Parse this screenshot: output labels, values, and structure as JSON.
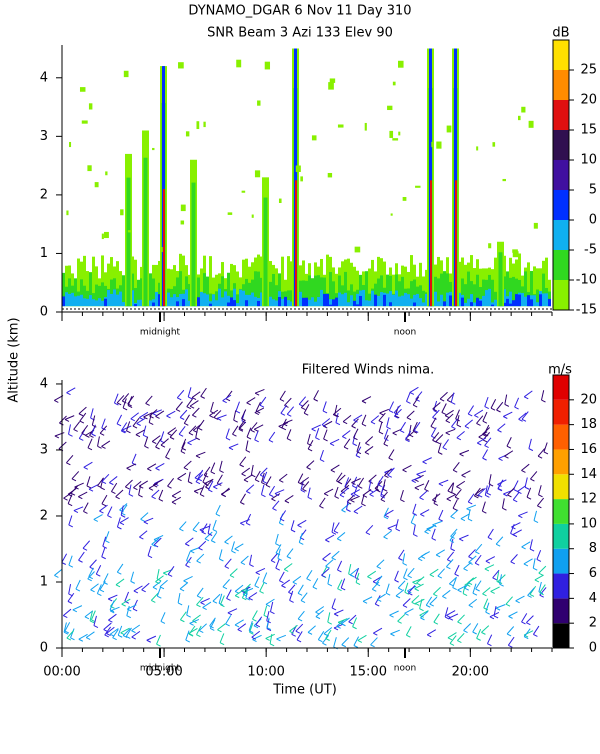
{
  "chart_data": [
    {
      "type": "contour",
      "title": "DYNAMO_DGAR    6 Nov 11 Day 310",
      "subtitle": "SNR Beam 3 Azi 133 Elev 90",
      "xlim": [
        0,
        24
      ],
      "xticks": [
        0,
        5,
        10,
        15,
        20
      ],
      "ylim": [
        0,
        4.56
      ],
      "yticks": [
        0,
        1,
        2,
        3,
        4
      ],
      "annotations": [
        {
          "x": 4.8,
          "text": "midnight"
        },
        {
          "x": 16.8,
          "text": "noon"
        }
      ],
      "colorbar": {
        "label": "dB",
        "bounds": [
          -15,
          -10,
          -5,
          0,
          5,
          10,
          15,
          20,
          25,
          30
        ],
        "colors": [
          "#88f000",
          "#30d820",
          "#10b0f0",
          "#0030ff",
          "#4010a0",
          "#301050",
          "#e01010",
          "#ff8c00",
          "#ffe000"
        ],
        "ticks": [
          -15,
          -10,
          -5,
          0,
          5,
          10,
          15,
          20,
          25
        ]
      }
    },
    {
      "type": "barbs",
      "title": "Filtered Winds nima.",
      "xlabel": "Time (UT)",
      "ylabel": "Altitude (km)",
      "xlim": [
        0,
        24
      ],
      "xticks": [
        {
          "value": 0,
          "label": "00:00"
        },
        {
          "value": 5,
          "label": "05:00"
        },
        {
          "value": 10,
          "label": "10:00"
        },
        {
          "value": 15,
          "label": "15:00"
        },
        {
          "value": 20,
          "label": "20:00"
        }
      ],
      "ylim": [
        0,
        4.06
      ],
      "yticks": [
        0,
        1,
        2,
        3,
        4
      ],
      "annotations": [
        {
          "x": 4.8,
          "text": "midnight"
        },
        {
          "x": 16.8,
          "text": "noon"
        }
      ],
      "colorbar": {
        "label": "m/s",
        "bounds": [
          0,
          2,
          4,
          6,
          8,
          10,
          12,
          14,
          16,
          18,
          20,
          22
        ],
        "colors": [
          "#000000",
          "#300070",
          "#3020e0",
          "#10a0f0",
          "#10d0a0",
          "#40e030",
          "#f0e000",
          "#ffa000",
          "#ff6000",
          "#f02000",
          "#e00000"
        ],
        "ticks": [
          0,
          2,
          4,
          6,
          8,
          10,
          12,
          14,
          16,
          18,
          20
        ]
      }
    }
  ]
}
